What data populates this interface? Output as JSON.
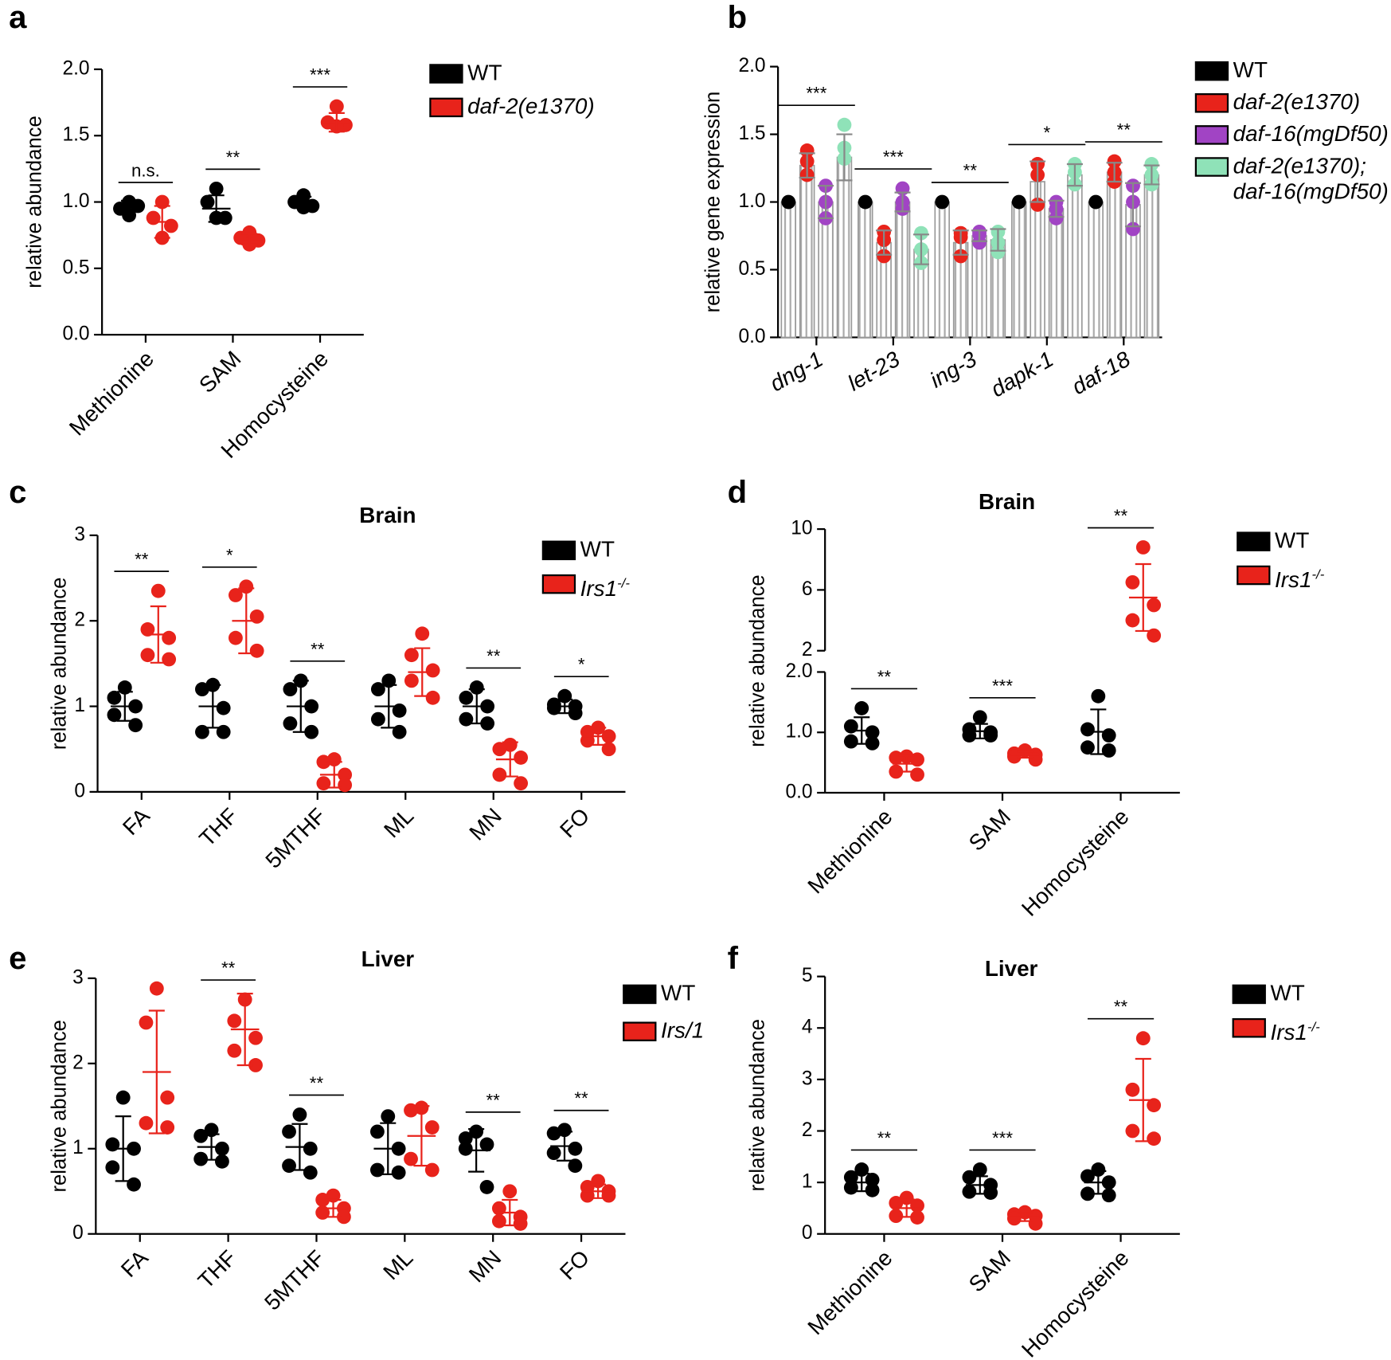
{
  "chart_data": [
    {
      "type": "dot",
      "panel": "a",
      "ylabel": "relative abundance",
      "categories": [
        "Methionine",
        "SAM",
        "Homocysteine"
      ],
      "ylim": [
        0,
        2
      ],
      "yticks": [
        {
          "value": 0,
          "label": "0.0"
        },
        0.5,
        {
          "value": 1,
          "label": "1.0"
        },
        1.5,
        {
          "value": 2,
          "label": "2.0"
        }
      ],
      "significance": [
        "n.s.",
        "**",
        "***"
      ],
      "series": [
        {
          "name": "WT",
          "color": "#000000",
          "points": [
            [
              1.0,
              0.95,
              0.97,
              0.9
            ],
            [
              1.1,
              1.0,
              0.88,
              0.88
            ],
            [
              1.05,
              1.0,
              0.97,
              0.96
            ]
          ],
          "mean": [
            0.97,
            0.95,
            1.0
          ],
          "sd": [
            0.04,
            0.1,
            0.04
          ]
        },
        {
          "name": "daf-2(e1370)",
          "italic": true,
          "color": "#e8231b",
          "points": [
            [
              1.0,
              0.88,
              0.82,
              0.73
            ],
            [
              0.77,
              0.73,
              0.71,
              0.68
            ],
            [
              1.72,
              1.6,
              1.58,
              1.57
            ]
          ],
          "mean": [
            0.85,
            0.72,
            1.6
          ],
          "sd": [
            0.12,
            0.04,
            0.07
          ]
        }
      ]
    },
    {
      "type": "bar",
      "panel": "b",
      "ylabel": "relative gene expression",
      "category_style": "italic",
      "categories": [
        "dng-1",
        "let-23",
        "ing-3",
        "dapk-1",
        "daf-18"
      ],
      "ylim": [
        0,
        2
      ],
      "yticks": [
        {
          "value": 0,
          "label": "0.0"
        },
        0.5,
        {
          "value": 1,
          "label": "1.0"
        },
        1.5,
        {
          "value": 2,
          "label": "2.0"
        }
      ],
      "significance": [
        "***",
        "***",
        "**",
        "*",
        "**"
      ],
      "series": [
        {
          "name": "WT",
          "color": "#000000",
          "points": [
            [
              1.0
            ],
            [
              1.0
            ],
            [
              1.0
            ],
            [
              1.0
            ],
            [
              1.0
            ]
          ],
          "mean": [
            1.0,
            1.0,
            1.0,
            1.0,
            1.0
          ],
          "sd": [
            0,
            0,
            0,
            0,
            0
          ]
        },
        {
          "name": "daf-2(e1370)",
          "italic": true,
          "color": "#e8231b",
          "points": [
            [
              1.38,
              1.3,
              1.2
            ],
            [
              0.78,
              0.72,
              0.6
            ],
            [
              0.77,
              0.74,
              0.6
            ],
            [
              1.28,
              1.2,
              0.98
            ],
            [
              1.3,
              1.22,
              1.15
            ]
          ],
          "mean": [
            1.27,
            0.7,
            0.7,
            1.15,
            1.22
          ],
          "sd": [
            0.09,
            0.09,
            0.09,
            0.15,
            0.07
          ]
        },
        {
          "name": "daf-16(mgDf50)",
          "italic": true,
          "color": "#a144c4",
          "points": [
            [
              1.12,
              1.0,
              0.88
            ],
            [
              1.1,
              1.0,
              0.95
            ],
            [
              0.78,
              0.76,
              0.7
            ],
            [
              1.0,
              0.95,
              0.88
            ],
            [
              1.12,
              1.0,
              0.8
            ]
          ],
          "mean": [
            1.0,
            1.0,
            0.75,
            0.95,
            0.98
          ],
          "sd": [
            0.12,
            0.07,
            0.04,
            0.06,
            0.16
          ]
        },
        {
          "name": "daf-2(e1370); daf-16(mgDf50)",
          "italic": true,
          "color": "#8fe2b8",
          "points": [
            [
              1.57,
              1.4,
              1.32
            ],
            [
              0.77,
              0.65,
              0.55
            ],
            [
              0.78,
              0.7,
              0.63
            ],
            [
              1.28,
              1.22,
              1.13
            ],
            [
              1.28,
              1.2,
              1.13
            ]
          ],
          "mean": [
            1.33,
            0.65,
            0.72,
            1.2,
            1.2
          ],
          "sd": [
            0.17,
            0.11,
            0.08,
            0.08,
            0.07
          ]
        }
      ]
    },
    {
      "type": "dot",
      "panel": "c",
      "title": "Brain",
      "ylabel": "relative abundance",
      "categories": [
        "FA",
        "THF",
        "5MTHF",
        "ML",
        "MN",
        "FO"
      ],
      "ylim": [
        0,
        3
      ],
      "yticks": [
        0,
        1,
        2,
        3
      ],
      "significance": [
        "**",
        "*",
        "**",
        null,
        "**",
        "*"
      ],
      "series": [
        {
          "name": "WT",
          "color": "#000000",
          "points": [
            [
              1.22,
              1.1,
              1.0,
              0.9,
              0.78
            ],
            [
              1.25,
              1.2,
              0.98,
              0.7,
              0.7
            ],
            [
              1.3,
              1.2,
              1.0,
              0.8,
              0.7
            ],
            [
              1.3,
              1.2,
              0.95,
              0.85,
              0.7
            ],
            [
              1.22,
              1.1,
              1.0,
              0.85,
              0.8
            ],
            [
              1.12,
              1.02,
              1.0,
              0.98,
              0.92
            ]
          ],
          "mean": [
            1.0,
            1.0,
            1.0,
            1.0,
            1.0,
            1.0
          ],
          "sd": [
            0.17,
            0.25,
            0.3,
            0.25,
            0.2,
            0.08
          ]
        },
        {
          "name": "Irs1",
          "name_sup": "-/-",
          "italic": true,
          "color": "#e8231b",
          "points": [
            [
              2.35,
              1.9,
              1.8,
              1.6,
              1.55
            ],
            [
              2.4,
              2.3,
              2.05,
              1.8,
              1.65
            ],
            [
              0.38,
              0.35,
              0.2,
              0.1,
              0.08
            ],
            [
              1.85,
              1.6,
              1.42,
              1.3,
              1.1
            ],
            [
              0.55,
              0.5,
              0.4,
              0.2,
              0.1
            ],
            [
              0.75,
              0.7,
              0.65,
              0.6,
              0.5
            ]
          ],
          "mean": [
            1.84,
            2.0,
            0.2,
            1.4,
            0.38,
            0.65
          ],
          "sd": [
            0.33,
            0.38,
            0.15,
            0.28,
            0.2,
            0.1
          ]
        }
      ]
    },
    {
      "type": "dot",
      "panel": "d",
      "title": "Brain",
      "ylabel": "relative abundance",
      "categories": [
        "Methionine",
        "SAM",
        "Homocysteine"
      ],
      "ylim": [
        0,
        2
      ],
      "yticks": [
        {
          "value": 0,
          "label": "0.0"
        },
        {
          "value": 1,
          "label": "1.0"
        },
        {
          "value": 2,
          "label": "2.0"
        }
      ],
      "ylim_upper": [
        2,
        10
      ],
      "yticks_upper": [
        2,
        6,
        10
      ],
      "significance": [
        "**",
        "***",
        "**"
      ],
      "series": [
        {
          "name": "WT",
          "color": "#000000",
          "points": [
            [
              1.4,
              1.1,
              1.0,
              0.85,
              0.82
            ],
            [
              1.25,
              1.05,
              1.0,
              0.95,
              0.95
            ],
            [
              1.6,
              1.05,
              0.95,
              0.75,
              0.7
            ]
          ],
          "mean": [
            1.03,
            1.02,
            1.01
          ],
          "sd": [
            0.22,
            0.12,
            0.37
          ]
        },
        {
          "name": "Irs1",
          "name_sup": "-/-",
          "italic": true,
          "color": "#e8231b",
          "points": [
            [
              0.6,
              0.58,
              0.55,
              0.35,
              0.3
            ],
            [
              0.7,
              0.65,
              0.63,
              0.6,
              0.55
            ],
            [
              8.8,
              6.5,
              5.0,
              4.0,
              3.0
            ]
          ],
          "mean": [
            0.48,
            0.63,
            5.5
          ],
          "sd": [
            0.13,
            0.05,
            2.2
          ]
        }
      ]
    },
    {
      "type": "dot",
      "panel": "e",
      "title": "Liver",
      "ylabel": "relative abundance",
      "categories": [
        "FA",
        "THF",
        "5MTHF",
        "ML",
        "MN",
        "FO"
      ],
      "ylim": [
        0,
        3
      ],
      "yticks": [
        0,
        1,
        2,
        3
      ],
      "significance": [
        null,
        "**",
        "**",
        null,
        "**",
        "**"
      ],
      "series": [
        {
          "name": "WT",
          "color": "#000000",
          "points": [
            [
              1.6,
              1.05,
              1.0,
              0.78,
              0.58
            ],
            [
              1.22,
              1.15,
              1.0,
              0.88,
              0.85
            ],
            [
              1.4,
              1.2,
              1.0,
              0.8,
              0.72
            ],
            [
              1.38,
              1.2,
              1.0,
              0.75,
              0.72
            ],
            [
              1.2,
              1.12,
              1.05,
              1.0,
              0.55
            ],
            [
              1.22,
              1.18,
              1.0,
              0.95,
              0.8
            ]
          ],
          "mean": [
            1.0,
            1.02,
            1.02,
            1.0,
            0.98,
            1.03
          ],
          "sd": [
            0.38,
            0.15,
            0.27,
            0.3,
            0.25,
            0.17
          ]
        },
        {
          "name": "Irs/1",
          "italic": true,
          "color": "#e8231b",
          "points": [
            [
              2.88,
              2.48,
              1.6,
              1.3,
              1.25
            ],
            [
              2.75,
              2.5,
              2.3,
              2.15,
              1.98
            ],
            [
              0.45,
              0.4,
              0.3,
              0.25,
              0.2
            ],
            [
              1.48,
              1.45,
              1.25,
              0.88,
              0.75
            ],
            [
              0.5,
              0.3,
              0.2,
              0.15,
              0.12
            ],
            [
              0.62,
              0.55,
              0.5,
              0.45,
              0.45
            ]
          ],
          "mean": [
            1.9,
            2.4,
            0.3,
            1.15,
            0.25,
            0.5
          ],
          "sd": [
            0.72,
            0.42,
            0.1,
            0.35,
            0.15,
            0.08
          ]
        }
      ]
    },
    {
      "type": "dot",
      "panel": "f",
      "title": "Liver",
      "ylabel": "relative abundance",
      "categories": [
        "Methionine",
        "SAM",
        "Homocysteine"
      ],
      "ylim": [
        0,
        5
      ],
      "yticks": [
        0,
        1,
        2,
        3,
        4,
        5
      ],
      "significance": [
        "**",
        "***",
        "**"
      ],
      "series": [
        {
          "name": "WT",
          "color": "#000000",
          "points": [
            [
              1.25,
              1.1,
              1.05,
              0.9,
              0.85
            ],
            [
              1.25,
              1.1,
              0.95,
              0.82,
              0.8
            ],
            [
              1.25,
              1.12,
              1.0,
              0.78,
              0.75
            ]
          ],
          "mean": [
            1.0,
            0.95,
            1.0
          ],
          "sd": [
            0.17,
            0.17,
            0.22
          ]
        },
        {
          "name": "Irs1",
          "name_sup": "-/-",
          "italic": true,
          "color": "#e8231b",
          "points": [
            [
              0.7,
              0.6,
              0.55,
              0.35,
              0.32
            ],
            [
              0.42,
              0.38,
              0.35,
              0.3,
              0.2
            ],
            [
              3.8,
              2.8,
              2.5,
              2.0,
              1.85
            ]
          ],
          "mean": [
            0.5,
            0.33,
            2.6
          ],
          "sd": [
            0.17,
            0.08,
            0.8
          ]
        }
      ]
    }
  ]
}
